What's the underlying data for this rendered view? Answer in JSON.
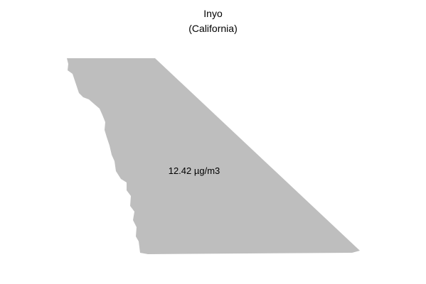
{
  "title": {
    "county": "Inyo",
    "state": "(California)"
  },
  "region": {
    "name": "Inyo",
    "value_label": "12.42 µg/m3",
    "value": 12.42,
    "unit": "µg/m3",
    "fill_color": "#bebebe"
  }
}
